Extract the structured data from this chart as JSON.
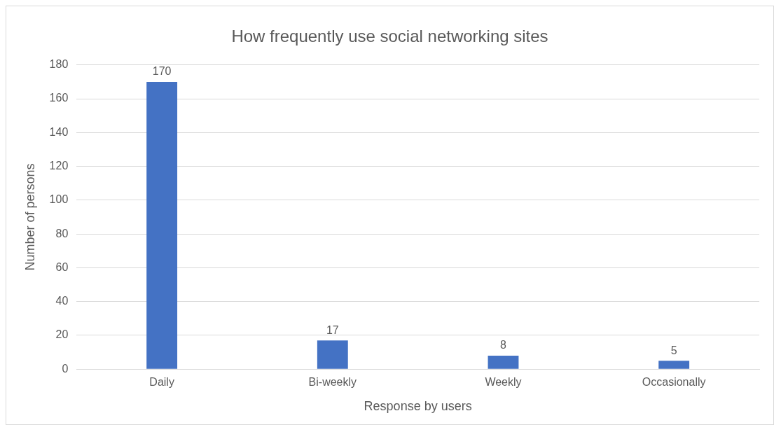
{
  "chart_data": {
    "type": "bar",
    "title": "How frequently use social networking sites",
    "xlabel": "Response by users",
    "ylabel": "Number of persons",
    "categories": [
      "Daily",
      "Bi-weekly",
      "Weekly",
      "Occasionally"
    ],
    "values": [
      170,
      17,
      8,
      5
    ],
    "color": "#4472c4",
    "ylim": [
      0,
      180
    ],
    "yticks": [
      0,
      20,
      40,
      60,
      80,
      100,
      120,
      140,
      160,
      180
    ],
    "grid": "y",
    "data_labels": true
  }
}
